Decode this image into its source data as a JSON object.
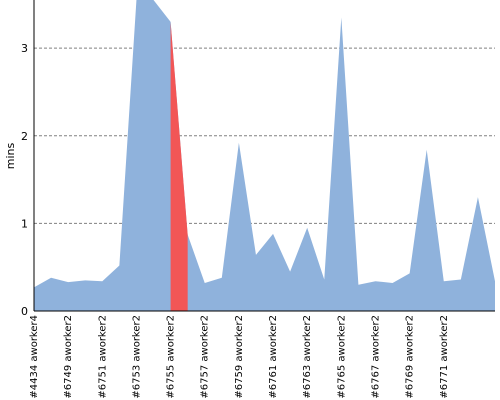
{
  "chart_data": {
    "type": "area",
    "ylabel": "mins",
    "ylim": [
      0,
      3.55
    ],
    "yticks": [
      0,
      1,
      2,
      3
    ],
    "grid": true,
    "colors": {
      "fill": "#8fb2dc",
      "highlight": "#f25656",
      "grid": "#808080"
    },
    "x_labels": [
      "#4434 aworker4",
      "#6749 aworker2",
      "#6751 aworker2",
      "#6753 aworker2",
      "#6755 aworker2",
      "#6757 aworker2",
      "#6759 aworker2",
      "#6761 aworker2",
      "#6763 aworker2",
      "#6765 aworker2",
      "#6767 aworker2",
      "#6769 aworker2",
      "#6771 aworker2"
    ],
    "values": [
      0.27,
      0.38,
      0.33,
      0.35,
      0.34,
      0.52,
      3.6,
      3.6,
      3.3,
      0.87,
      0.32,
      0.38,
      1.92,
      0.64,
      0.88,
      0.45,
      0.95,
      0.36,
      3.35,
      0.3,
      0.34,
      0.32,
      0.43,
      1.84,
      0.34,
      0.36,
      1.3,
      0.34
    ],
    "label_every": 2,
    "highlight_index": 8
  }
}
